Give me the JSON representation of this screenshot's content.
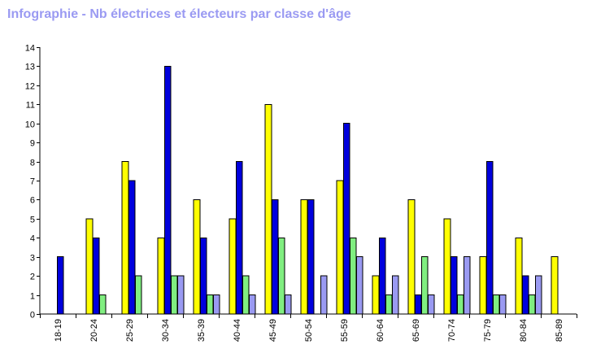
{
  "title": "Infographie - Nb électrices et électeurs par classe d'âge",
  "chart_data": {
    "type": "bar",
    "title": "Infographie - Nb électrices et électeurs par classe d'âge",
    "xlabel": "",
    "ylabel": "",
    "ylim": [
      0,
      14
    ],
    "yticks": [
      0,
      1,
      2,
      3,
      4,
      5,
      6,
      7,
      8,
      9,
      10,
      11,
      12,
      13,
      14
    ],
    "grid": false,
    "legend": "none",
    "categories": [
      "18-19",
      "20-24",
      "25-29",
      "30-34",
      "35-39",
      "40-44",
      "45-49",
      "50-54",
      "55-59",
      "60-64",
      "65-69",
      "70-74",
      "75-79",
      "80-84",
      "85-89"
    ],
    "series": [
      {
        "color": "#ffff00",
        "values": [
          0,
          5,
          8,
          4,
          6,
          5,
          11,
          6,
          7,
          2,
          6,
          5,
          3,
          4,
          3
        ]
      },
      {
        "color": "#0000dd",
        "values": [
          3,
          4,
          7,
          13,
          4,
          8,
          6,
          6,
          10,
          4,
          1,
          3,
          8,
          2,
          0
        ]
      },
      {
        "color": "#80ee80",
        "values": [
          0,
          1,
          2,
          2,
          1,
          2,
          4,
          0,
          4,
          1,
          3,
          1,
          1,
          1,
          0
        ]
      },
      {
        "color": "#9a9af2",
        "values": [
          0,
          0,
          0,
          2,
          1,
          1,
          1,
          2,
          3,
          2,
          1,
          3,
          1,
          2,
          0
        ]
      }
    ]
  }
}
